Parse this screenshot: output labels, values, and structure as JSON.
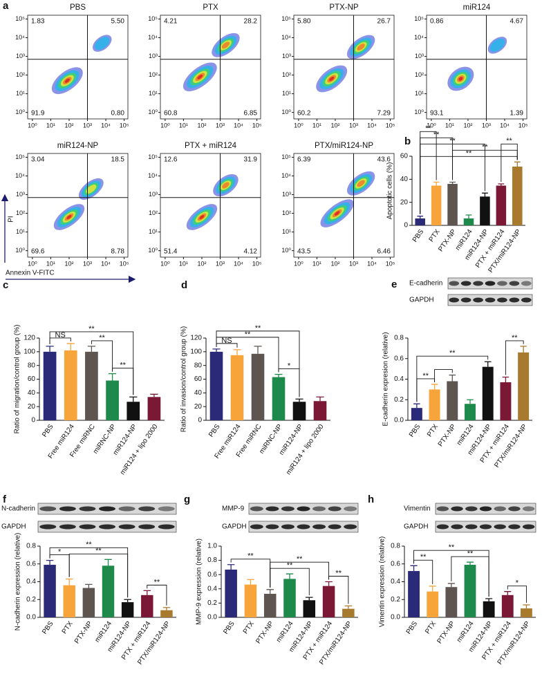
{
  "chart_data": [
    {
      "type": "flow",
      "panel": "a",
      "title": "PBS",
      "annotations": [
        "1.83",
        "5.50",
        "91.9",
        "0.80"
      ],
      "log": true,
      "gate": [
        1000,
        700
      ],
      "xlim": [
        0.55,
        160000
      ],
      "ylim": [
        0.45,
        160000
      ],
      "xticks": [
        {
          "value": 1,
          "label": "10⁰"
        },
        {
          "value": 10,
          "label": "10¹"
        },
        {
          "value": 100,
          "label": "10²"
        },
        {
          "value": 1000,
          "label": "10³"
        },
        {
          "value": 10000,
          "label": "10⁴"
        },
        {
          "value": 100000,
          "label": "10⁵"
        }
      ],
      "yticks": [
        {
          "value": 1,
          "label": "10⁰"
        },
        {
          "value": 10,
          "label": "10¹"
        },
        {
          "value": 100,
          "label": "10²"
        },
        {
          "value": 1000,
          "label": "10³"
        },
        {
          "value": 10000,
          "label": "10⁴"
        },
        {
          "value": 100000,
          "label": "10⁵"
        }
      ]
    },
    {
      "type": "flow",
      "title": "PTX",
      "annotations": [
        "4.21",
        "28.2",
        "60.8",
        "6.85"
      ],
      "log": true,
      "gate": [
        1000,
        700
      ],
      "xlim": [
        0.55,
        160000
      ],
      "ylim": [
        0.45,
        160000
      ],
      "xticks": [
        {
          "value": 1,
          "label": "10⁰"
        },
        {
          "value": 10,
          "label": "10¹"
        },
        {
          "value": 100,
          "label": "10²"
        },
        {
          "value": 1000,
          "label": "10³"
        },
        {
          "value": 10000,
          "label": "10⁴"
        },
        {
          "value": 100000,
          "label": "10⁵"
        }
      ],
      "yticks": [
        {
          "value": 1,
          "label": "10⁰"
        },
        {
          "value": 10,
          "label": "10¹"
        },
        {
          "value": 100,
          "label": "10²"
        },
        {
          "value": 1000,
          "label": "10³"
        },
        {
          "value": 10000,
          "label": "10⁴"
        },
        {
          "value": 100000,
          "label": "10⁵"
        }
      ]
    },
    {
      "type": "flow",
      "title": "PTX-NP",
      "annotations": [
        "5.80",
        "26.7",
        "60.2",
        "7.29"
      ],
      "log": true,
      "gate": [
        1000,
        700
      ],
      "xlim": [
        0.55,
        160000
      ],
      "ylim": [
        0.45,
        160000
      ],
      "xticks": [
        {
          "value": 1,
          "label": "10⁰"
        },
        {
          "value": 10,
          "label": "10¹"
        },
        {
          "value": 100,
          "label": "10²"
        },
        {
          "value": 1000,
          "label": "10³"
        },
        {
          "value": 10000,
          "label": "10⁴"
        },
        {
          "value": 100000,
          "label": "10⁵"
        }
      ],
      "yticks": [
        {
          "value": 1,
          "label": "10⁰"
        },
        {
          "value": 10,
          "label": "10¹"
        },
        {
          "value": 100,
          "label": "10²"
        },
        {
          "value": 1000,
          "label": "10³"
        },
        {
          "value": 10000,
          "label": "10⁴"
        },
        {
          "value": 100000,
          "label": "10⁵"
        }
      ]
    },
    {
      "type": "flow",
      "title": "miR124",
      "annotations": [
        "0.86",
        "4.67",
        "93.1",
        "1.39"
      ],
      "log": true,
      "gate": [
        1000,
        700
      ],
      "xlim": [
        0.55,
        160000
      ],
      "ylim": [
        0.45,
        160000
      ],
      "xticks": [
        {
          "value": 1,
          "label": "10⁰"
        },
        {
          "value": 10,
          "label": "10¹"
        },
        {
          "value": 100,
          "label": "10²"
        },
        {
          "value": 1000,
          "label": "10³"
        },
        {
          "value": 10000,
          "label": "10⁴"
        },
        {
          "value": 100000,
          "label": "10⁵"
        }
      ],
      "yticks": [
        {
          "value": 1,
          "label": "10⁰"
        },
        {
          "value": 10,
          "label": "10¹"
        },
        {
          "value": 100,
          "label": "10²"
        },
        {
          "value": 1000,
          "label": "10³"
        },
        {
          "value": 10000,
          "label": "10⁴"
        },
        {
          "value": 100000,
          "label": "10⁵"
        }
      ]
    },
    {
      "type": "flow",
      "title": "miR124-NP",
      "annotations": [
        "3.04",
        "18.5",
        "69.6",
        "8.78"
      ],
      "xlabel": "Annexin V-FITC",
      "ylabel": "PI",
      "log": true,
      "gate": [
        1000,
        700
      ],
      "xlim": [
        0.55,
        160000
      ],
      "ylim": [
        0.45,
        160000
      ],
      "xticks": [
        {
          "value": 1,
          "label": "10⁰"
        },
        {
          "value": 10,
          "label": "10¹"
        },
        {
          "value": 100,
          "label": "10²"
        },
        {
          "value": 1000,
          "label": "10³"
        },
        {
          "value": 10000,
          "label": "10⁴"
        },
        {
          "value": 100000,
          "label": "10⁵"
        }
      ],
      "yticks": [
        {
          "value": 1,
          "label": "10⁰"
        },
        {
          "value": 10,
          "label": "10¹"
        },
        {
          "value": 100,
          "label": "10²"
        },
        {
          "value": 1000,
          "label": "10³"
        },
        {
          "value": 10000,
          "label": "10⁴"
        },
        {
          "value": 100000,
          "label": "10⁵"
        }
      ]
    },
    {
      "type": "flow",
      "title": "PTX + miR124",
      "annotations": [
        "12.6",
        "31.9",
        "51.4",
        "4.12"
      ],
      "log": true,
      "gate": [
        1000,
        700
      ],
      "xlim": [
        0.55,
        160000
      ],
      "ylim": [
        0.45,
        160000
      ],
      "xticks": [
        {
          "value": 1,
          "label": "10⁰"
        },
        {
          "value": 10,
          "label": "10¹"
        },
        {
          "value": 100,
          "label": "10²"
        },
        {
          "value": 1000,
          "label": "10³"
        },
        {
          "value": 10000,
          "label": "10⁴"
        },
        {
          "value": 100000,
          "label": "10⁵"
        }
      ],
      "yticks": [
        {
          "value": 1,
          "label": "10⁰"
        },
        {
          "value": 10,
          "label": "10¹"
        },
        {
          "value": 100,
          "label": "10²"
        },
        {
          "value": 1000,
          "label": "10³"
        },
        {
          "value": 10000,
          "label": "10⁴"
        },
        {
          "value": 100000,
          "label": "10⁵"
        }
      ]
    },
    {
      "type": "flow",
      "title": "PTX/miR124-NP",
      "annotations": [
        "6.39",
        "43.6",
        "43.5",
        "6.46"
      ],
      "log": true,
      "gate": [
        1000,
        700
      ],
      "xlim": [
        0.55,
        160000
      ],
      "ylim": [
        0.45,
        160000
      ],
      "xticks": [
        {
          "value": 1,
          "label": "10⁰"
        },
        {
          "value": 10,
          "label": "10¹"
        },
        {
          "value": 100,
          "label": "10²"
        },
        {
          "value": 1000,
          "label": "10³"
        },
        {
          "value": 10000,
          "label": "10⁴"
        },
        {
          "value": 100000,
          "label": "10⁵"
        }
      ],
      "yticks": [
        {
          "value": 1,
          "label": "10⁰"
        },
        {
          "value": 10,
          "label": "10¹"
        },
        {
          "value": 100,
          "label": "10²"
        },
        {
          "value": 1000,
          "label": "10³"
        },
        {
          "value": 10000,
          "label": "10⁴"
        },
        {
          "value": 100000,
          "label": "10⁵"
        }
      ]
    },
    {
      "type": "bar",
      "panel": "b",
      "ylabel": "Apoptotic cells (%)",
      "categories": [
        "PBS",
        "PTX",
        "PTX-NP",
        "miR124",
        "miR124-NP",
        "PTX + miR124",
        "PTX/miR124-NP"
      ],
      "values": [
        6,
        34.5,
        36,
        6,
        25,
        34.5,
        51
      ],
      "errors": [
        2,
        3,
        1.5,
        3,
        3,
        1.5,
        4
      ],
      "colors": [
        "#2a2a78",
        "#f7a43b",
        "#5e5450",
        "#1d8a4b",
        "#111111",
        "#7a1836",
        "#a87a2e"
      ],
      "ylim": [
        0,
        60
      ],
      "yticks": [
        0,
        20,
        40,
        60
      ],
      "significance": [
        {
          "pair": [
            0,
            6
          ],
          "label": "**"
        },
        {
          "pair": [
            2,
            6
          ],
          "label": "**"
        },
        {
          "pair": [
            0,
            4
          ],
          "label": "**"
        },
        {
          "pair": [
            0,
            2
          ],
          "label": "**"
        },
        {
          "pair": [
            0,
            1
          ],
          "label": "**"
        },
        {
          "pair": [
            5,
            6
          ],
          "label": "**"
        }
      ]
    },
    {
      "type": "bar",
      "panel": "c",
      "ylabel": "Ratio of migration/control group (%)",
      "categories": [
        "PBS",
        "Free miR124",
        "Free miRNC",
        "miRNC-NP",
        "miR124-NP",
        "miR124 + lipo 2000"
      ],
      "values": [
        100,
        102,
        100,
        58,
        27,
        34
      ],
      "errors": [
        8,
        10,
        8,
        10,
        7,
        4
      ],
      "colors": [
        "#2a2a78",
        "#f7a43b",
        "#5e5450",
        "#1d8a4b",
        "#111111",
        "#7a1836"
      ],
      "ylim": [
        0,
        120
      ],
      "yticks": [
        0,
        20,
        40,
        60,
        80,
        100,
        120
      ],
      "significance": [
        {
          "pair": [
            0,
            1
          ],
          "label": "NS"
        },
        {
          "pair": [
            2,
            3
          ],
          "label": "**"
        },
        {
          "pair": [
            3,
            4
          ],
          "label": "**"
        },
        {
          "pair": [
            0,
            4
          ],
          "label": "**"
        }
      ]
    },
    {
      "type": "bar",
      "panel": "d",
      "ylabel": "Ratio of invasion/control group (%)",
      "categories": [
        "PBS",
        "Free miR124",
        "Free miRNC",
        "miRNC-NP",
        "miR124-NP",
        "miR124 + lipo 2000"
      ],
      "values": [
        100,
        95,
        97,
        63,
        27,
        28
      ],
      "errors": [
        4,
        8,
        11,
        4,
        4,
        6
      ],
      "colors": [
        "#2a2a78",
        "#f7a43b",
        "#5e5450",
        "#1d8a4b",
        "#111111",
        "#7a1836"
      ],
      "ylim": [
        0,
        120
      ],
      "yticks": [
        0,
        20,
        40,
        60,
        80,
        100,
        120
      ],
      "significance": [
        {
          "pair": [
            0,
            1
          ],
          "label": "NS"
        },
        {
          "pair": [
            3,
            4
          ],
          "label": "*"
        },
        {
          "pair": [
            0,
            3
          ],
          "label": "**"
        },
        {
          "pair": [
            0,
            4
          ],
          "label": "**"
        }
      ]
    },
    {
      "type": "bar",
      "panel": "e",
      "blot_labels": [
        "E-cadherin",
        "GAPDH"
      ],
      "ylabel": "E-cadherin expresion (relative)",
      "categories": [
        "PBS",
        "PTX",
        "PTX-NP",
        "miR124",
        "miR124-NP",
        "PTX + miR124",
        "PTX/miR124-NP"
      ],
      "values": [
        0.12,
        0.3,
        0.38,
        0.16,
        0.52,
        0.37,
        0.66
      ],
      "errors": [
        0.04,
        0.05,
        0.06,
        0.04,
        0.05,
        0.05,
        0.06
      ],
      "colors": [
        "#2a2a78",
        "#f7a43b",
        "#5e5450",
        "#1d8a4b",
        "#111111",
        "#7a1836",
        "#a87a2e"
      ],
      "ylim": [
        0,
        0.8
      ],
      "yticks": [
        {
          "value": 0,
          "label": "0.0"
        },
        0.2,
        0.4,
        0.6,
        0.8
      ],
      "significance": [
        {
          "pair": [
            1,
            2
          ],
          "label": ""
        },
        {
          "pair": [
            0,
            1
          ],
          "label": "**"
        },
        {
          "pair": [
            5,
            6
          ],
          "label": "**"
        },
        {
          "pair": [
            0,
            4
          ],
          "label": "**"
        }
      ]
    },
    {
      "type": "bar",
      "panel": "f",
      "blot_labels": [
        "N-cadherin",
        "GAPDH"
      ],
      "ylabel": "N-cadherin expression (relative)",
      "categories": [
        "PBS",
        "PTX",
        "PTX-NP",
        "miR124",
        "miR124-NP",
        "PTX + miR124",
        "PTX/miR124-NP"
      ],
      "values": [
        0.59,
        0.36,
        0.33,
        0.58,
        0.17,
        0.25,
        0.08
      ],
      "errors": [
        0.05,
        0.07,
        0.04,
        0.07,
        0.03,
        0.05,
        0.03
      ],
      "colors": [
        "#2a2a78",
        "#f7a43b",
        "#5e5450",
        "#1d8a4b",
        "#111111",
        "#7a1836",
        "#a87a2e"
      ],
      "ylim": [
        0,
        0.8
      ],
      "yticks": [
        {
          "value": 0,
          "label": "0.0"
        },
        0.2,
        0.4,
        0.6,
        0.8
      ],
      "significance": [
        {
          "pair": [
            0,
            1
          ],
          "label": "*"
        },
        {
          "pair": [
            1,
            4
          ],
          "label": "**"
        },
        {
          "pair": [
            0,
            4
          ],
          "label": "**"
        },
        {
          "pair": [
            5,
            6
          ],
          "label": "**"
        }
      ]
    },
    {
      "type": "bar",
      "panel": "g",
      "blot_labels": [
        "MMP-9",
        "GAPDH"
      ],
      "ylabel": "MMP-9 expression (relative)",
      "categories": [
        "PBS",
        "PTX",
        "PTX-NP",
        "miR124",
        "miR124-NP",
        "PTX + miR124",
        "PTX/miR124-NP"
      ],
      "values": [
        0.67,
        0.46,
        0.33,
        0.54,
        0.24,
        0.44,
        0.12
      ],
      "errors": [
        0.07,
        0.07,
        0.06,
        0.07,
        0.04,
        0.06,
        0.04
      ],
      "colors": [
        "#2a2a78",
        "#f7a43b",
        "#5e5450",
        "#1d8a4b",
        "#111111",
        "#7a1836",
        "#a87a2e"
      ],
      "ylim": [
        0,
        1.0
      ],
      "yticks": [
        {
          "value": 0,
          "label": "0.0"
        },
        0.2,
        0.4,
        0.6,
        0.8,
        {
          "value": 1,
          "label": "1.0"
        }
      ],
      "significance": [
        {
          "pair": [
            0,
            2
          ],
          "label": "**"
        },
        {
          "pair": [
            2,
            4
          ],
          "label": "**"
        },
        {
          "pair": [
            2,
            5
          ],
          "label": "**"
        },
        {
          "pair": [
            5,
            6
          ],
          "label": "**"
        }
      ]
    },
    {
      "type": "bar",
      "panel": "h",
      "blot_labels": [
        "Vimentin",
        "GAPDH"
      ],
      "ylabel": "Vimentin expression (relative)",
      "categories": [
        "PBS",
        "PTX",
        "PTX-NP",
        "miR124",
        "miR124-NP",
        "PTX + miR124",
        "PTX/miR124-NP"
      ],
      "values": [
        0.52,
        0.29,
        0.34,
        0.59,
        0.18,
        0.25,
        0.1
      ],
      "errors": [
        0.06,
        0.06,
        0.04,
        0.03,
        0.03,
        0.04,
        0.04
      ],
      "colors": [
        "#2a2a78",
        "#f7a43b",
        "#5e5450",
        "#1d8a4b",
        "#111111",
        "#7a1836",
        "#a87a2e"
      ],
      "ylim": [
        0,
        0.8
      ],
      "yticks": [
        {
          "value": 0,
          "label": "0.0"
        },
        0.2,
        0.4,
        0.6,
        0.8
      ],
      "significance": [
        {
          "pair": [
            0,
            1
          ],
          "label": "**"
        },
        {
          "pair": [
            2,
            4
          ],
          "label": "**"
        },
        {
          "pair": [
            0,
            4
          ],
          "label": "**"
        },
        {
          "pair": [
            5,
            6
          ],
          "label": "*"
        }
      ]
    }
  ]
}
